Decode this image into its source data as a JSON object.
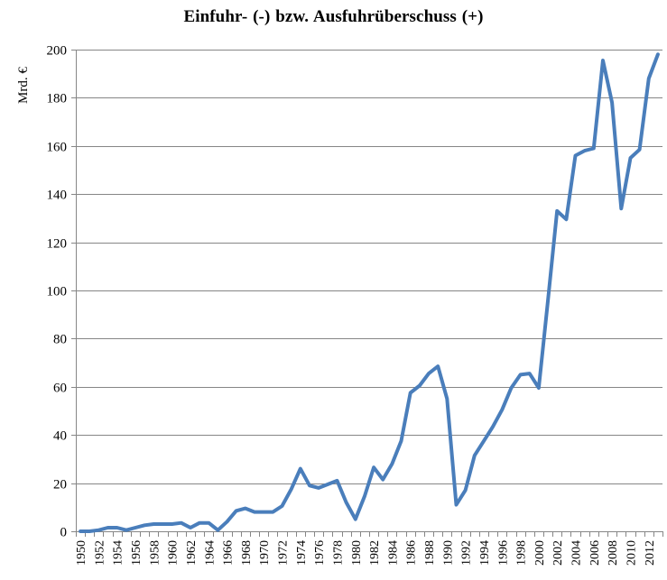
{
  "chart_data": {
    "type": "line",
    "title": "Einfuhr-  (-) bzw. Ausfuhrüberschuss  (+)",
    "xlabel": "",
    "ylabel": "Mrd. €",
    "ylim": [
      0,
      200
    ],
    "yticks": [
      0,
      20,
      40,
      60,
      80,
      100,
      120,
      140,
      160,
      180,
      200
    ],
    "grid": true,
    "legend": null,
    "x": [
      1950,
      1951,
      1952,
      1953,
      1954,
      1955,
      1956,
      1957,
      1958,
      1959,
      1960,
      1961,
      1962,
      1963,
      1964,
      1965,
      1966,
      1967,
      1968,
      1969,
      1970,
      1971,
      1972,
      1973,
      1974,
      1975,
      1976,
      1977,
      1978,
      1979,
      1980,
      1981,
      1982,
      1983,
      1984,
      1985,
      1986,
      1987,
      1988,
      1989,
      1990,
      1991,
      1992,
      1993,
      1994,
      1995,
      1996,
      1997,
      1998,
      1999,
      2000,
      2001,
      2002,
      2003,
      2004,
      2005,
      2006,
      2007,
      2008,
      2009,
      2010,
      2011,
      2012,
      2013
    ],
    "xtick_labels": [
      "1950",
      "1952",
      "1954",
      "1956",
      "1958",
      "1960",
      "1962",
      "1964",
      "1966",
      "1968",
      "1970",
      "1972",
      "1974",
      "1976",
      "1978",
      "1980",
      "1982",
      "1984",
      "1986",
      "1988",
      "1990",
      "1992",
      "1994",
      "1996",
      "1998",
      "2000",
      "2002",
      "2004",
      "2006",
      "2008",
      "2010",
      "2012"
    ],
    "series": [
      {
        "name": "Einfuhr- bzw. Ausfuhrüberschuss",
        "color": "#4a7ebb",
        "values": [
          0,
          0,
          0.5,
          1.5,
          1.5,
          0.5,
          1.5,
          2.5,
          3,
          3,
          3,
          3.5,
          1.5,
          3.5,
          3.5,
          0.5,
          4,
          8.5,
          9.5,
          8,
          8,
          8,
          10.5,
          17.5,
          26,
          19,
          18,
          19.5,
          21,
          12,
          5,
          14.5,
          26.5,
          21.5,
          28,
          37.5,
          57.5,
          60.5,
          65.5,
          68.5,
          55,
          11,
          17,
          31.5,
          37.5,
          43.5,
          50.5,
          59.5,
          65,
          65.5,
          59.5,
          95.5,
          133,
          129.5,
          156,
          158,
          159,
          195.5,
          178,
          134,
          155,
          158.5,
          188,
          198
        ]
      }
    ]
  },
  "colors": {
    "line": "#4a7ebb",
    "grid": "#868686",
    "axis": "#868686"
  }
}
